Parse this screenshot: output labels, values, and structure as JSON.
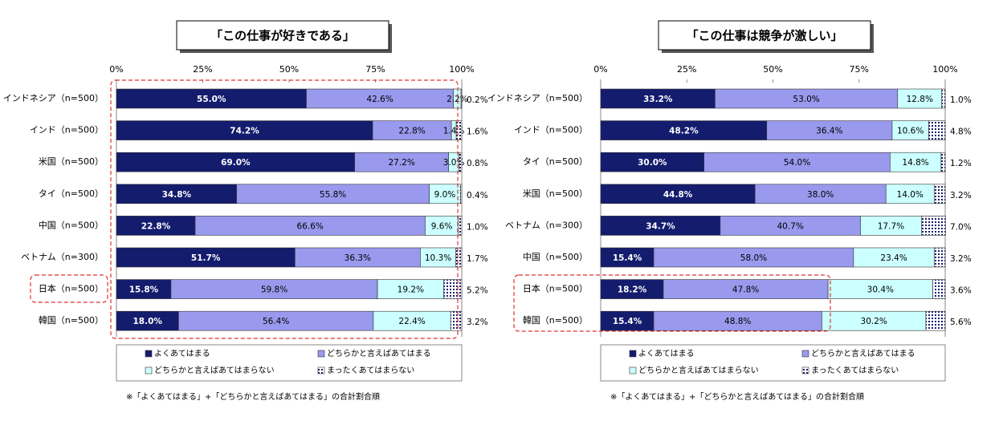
{
  "chart_data": [
    {
      "type": "bar",
      "orientation": "horizontal",
      "stacked": true,
      "title": "「この仕事が好きである」",
      "categories": [
        "インドネシア（n=500）",
        "インド（n=500）",
        "米国（n=500）",
        "タイ（n=500）",
        "中国（n=500）",
        "ベトナム（n=300）",
        "日本（n=500）",
        "韓国（n=500）"
      ],
      "series": [
        {
          "name": "よくあてはまる",
          "color": "#141c6e",
          "values": [
            55.0,
            74.2,
            69.0,
            34.8,
            22.8,
            51.7,
            15.8,
            18.0
          ],
          "value_labels": [
            "55.0%",
            "74.2%",
            "69.0%",
            "34.8%",
            "22.8%",
            "51.7%",
            "15.8%",
            "18.0%"
          ]
        },
        {
          "name": "どちらかと言えばあてはまる",
          "color": "#9999ee",
          "values": [
            42.6,
            22.8,
            27.2,
            55.8,
            66.6,
            36.3,
            59.8,
            56.4
          ],
          "value_labels": [
            "42.6%",
            "22.8%",
            "27.2%",
            "55.8%",
            "66.6%",
            "36.3%",
            "59.8%",
            "56.4%"
          ]
        },
        {
          "name": "どちらかと言えばあてはまらない",
          "color": "#ccffff",
          "values": [
            2.2,
            1.4,
            3.0,
            9.0,
            9.6,
            10.3,
            19.2,
            22.4
          ],
          "value_labels": [
            "2.2%",
            "1.4%",
            "3.0%",
            "9.0%",
            "9.6%",
            "10.3%",
            "19.2%",
            "22.4%"
          ]
        },
        {
          "name": "まったくあてはまらない",
          "color": "#141c6e",
          "pattern": "dots",
          "values": [
            0.2,
            1.6,
            0.8,
            0.4,
            1.0,
            1.7,
            5.2,
            3.2
          ],
          "value_labels": [
            "0.2%",
            "1.6%",
            "0.8%",
            "0.4%",
            "1.0%",
            "1.7%",
            "5.2%",
            "3.2%"
          ]
        }
      ],
      "xlim": [
        0,
        100
      ],
      "xticks": [
        {
          "value": 0,
          "label": "0%"
        },
        {
          "value": 25,
          "label": "25%"
        },
        {
          "value": 50,
          "label": "50%"
        },
        {
          "value": 75,
          "label": "75%"
        },
        {
          "value": 100,
          "label": "100%"
        }
      ],
      "note": "※「よくあてはまる」+「どちらかと言えばあてはまる」の合計割合順"
    },
    {
      "type": "bar",
      "orientation": "horizontal",
      "stacked": true,
      "title": "「この仕事は競争が激しい」",
      "categories": [
        "インドネシア（n=500）",
        "インド（n=500）",
        "タイ（n=500）",
        "米国（n=500）",
        "ベトナム（n=300）",
        "中国（n=500）",
        "日本（n=500）",
        "韓国（n=500）"
      ],
      "series": [
        {
          "name": "よくあてはまる",
          "color": "#141c6e",
          "values": [
            33.2,
            48.2,
            30.0,
            44.8,
            34.7,
            15.4,
            18.2,
            15.4
          ],
          "value_labels": [
            "33.2%",
            "48.2%",
            "30.0%",
            "44.8%",
            "34.7%",
            "15.4%",
            "18.2%",
            "15.4%"
          ]
        },
        {
          "name": "どちらかと言えばあてはまる",
          "color": "#9999ee",
          "values": [
            53.0,
            36.4,
            54.0,
            38.0,
            40.7,
            58.0,
            47.8,
            48.8
          ],
          "value_labels": [
            "53.0%",
            "36.4%",
            "54.0%",
            "38.0%",
            "40.7%",
            "58.0%",
            "47.8%",
            "48.8%"
          ]
        },
        {
          "name": "どちらかと言えばあてはまらない",
          "color": "#ccffff",
          "values": [
            12.8,
            10.6,
            14.8,
            14.0,
            17.7,
            23.4,
            30.4,
            30.2
          ],
          "value_labels": [
            "12.8%",
            "10.6%",
            "14.8%",
            "14.0%",
            "17.7%",
            "23.4%",
            "30.4%",
            "30.2%"
          ]
        },
        {
          "name": "まったくあてはまらない",
          "color": "#141c6e",
          "pattern": "dots",
          "values": [
            1.0,
            4.8,
            1.2,
            3.2,
            7.0,
            3.2,
            3.6,
            5.6
          ],
          "value_labels": [
            "1.0%",
            "4.8%",
            "1.2%",
            "3.2%",
            "7.0%",
            "3.2%",
            "3.6%",
            "5.6%"
          ]
        }
      ],
      "xlim": [
        0,
        100
      ],
      "xticks": [
        {
          "value": 0,
          "label": "0%"
        },
        {
          "value": 25,
          "label": "25%"
        },
        {
          "value": 50,
          "label": "50%"
        },
        {
          "value": 75,
          "label": "75%"
        },
        {
          "value": 100,
          "label": "100%"
        }
      ],
      "note": "※「よくあてはまる」+「どちらかと言えばあてはまる」の合計割合順"
    }
  ]
}
